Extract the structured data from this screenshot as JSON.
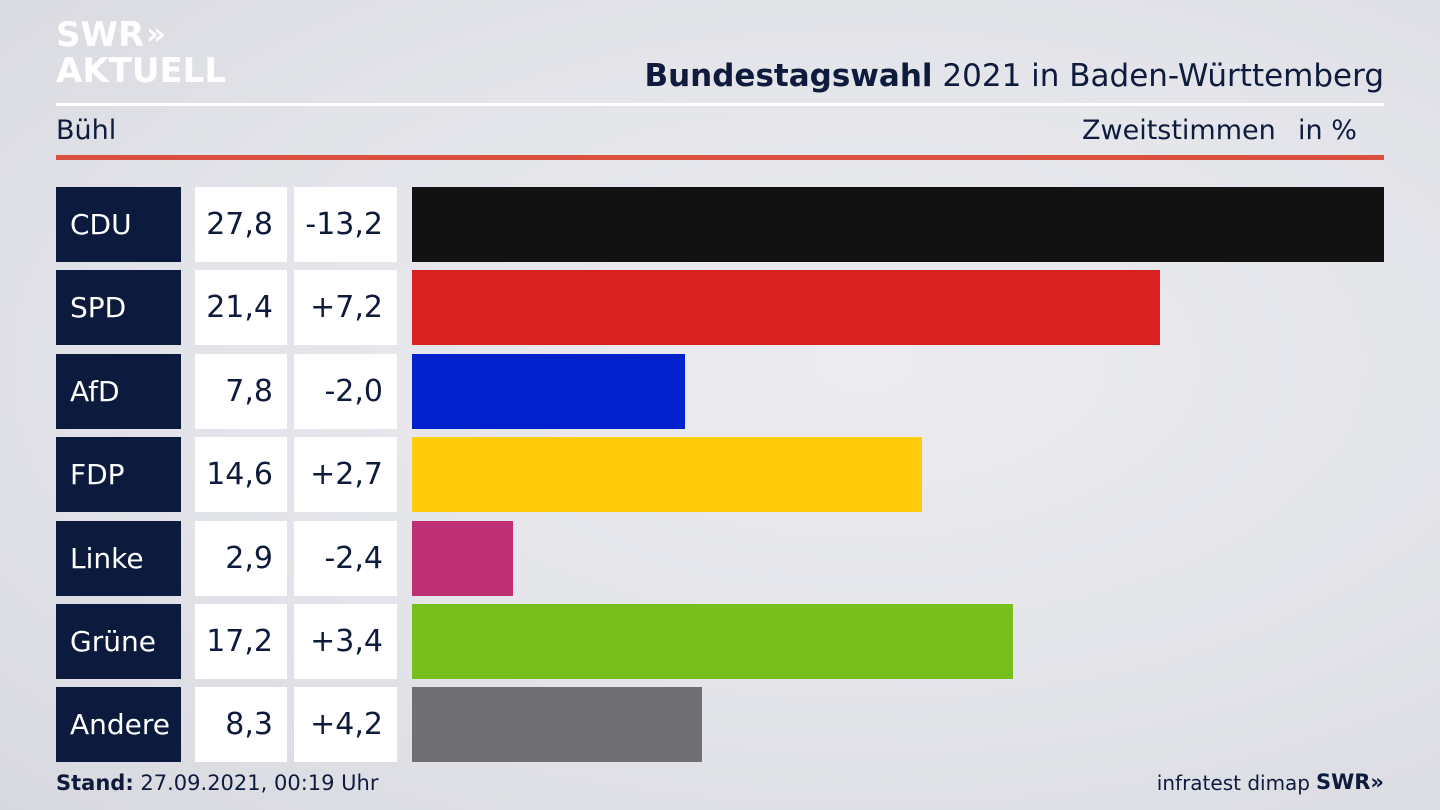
{
  "logo": {
    "line1": "SWR",
    "line1_chevrons": "»",
    "line2": "AKTUELL"
  },
  "header": {
    "title_bold": "Bundestagswahl",
    "title_rest": " 2021 in Baden-Württemberg",
    "location": "Bühl",
    "metric": "Zweitstimmen",
    "unit": "in %"
  },
  "chart_data": {
    "type": "bar",
    "orientation": "horizontal",
    "categories": [
      "CDU",
      "SPD",
      "AfD",
      "FDP",
      "Linke",
      "Grüne",
      "Andere"
    ],
    "values": [
      27.8,
      21.4,
      7.8,
      14.6,
      2.9,
      17.2,
      8.3
    ],
    "value_labels": [
      "27,8",
      "21,4",
      "7,8",
      "14,6",
      "2,9",
      "17,2",
      "8,3"
    ],
    "changes": [
      -13.2,
      7.2,
      -2.0,
      2.7,
      -2.4,
      3.4,
      4.2
    ],
    "change_labels": [
      "-13,2",
      "+7,2",
      "-2,0",
      "+2,7",
      "-2,4",
      "+3,4",
      "+4,2"
    ],
    "colors": [
      "#121212",
      "#d92121",
      "#0021cc",
      "#fecc0a",
      "#be2f73",
      "#78be1c",
      "#707073"
    ],
    "xlim": [
      0,
      27.8
    ],
    "grid": false
  },
  "footer": {
    "stand_label": "Stand:",
    "stand_value": " 27.09.2021, 00:19 Uhr",
    "source": "infratest dimap",
    "brand": "SWR»"
  }
}
